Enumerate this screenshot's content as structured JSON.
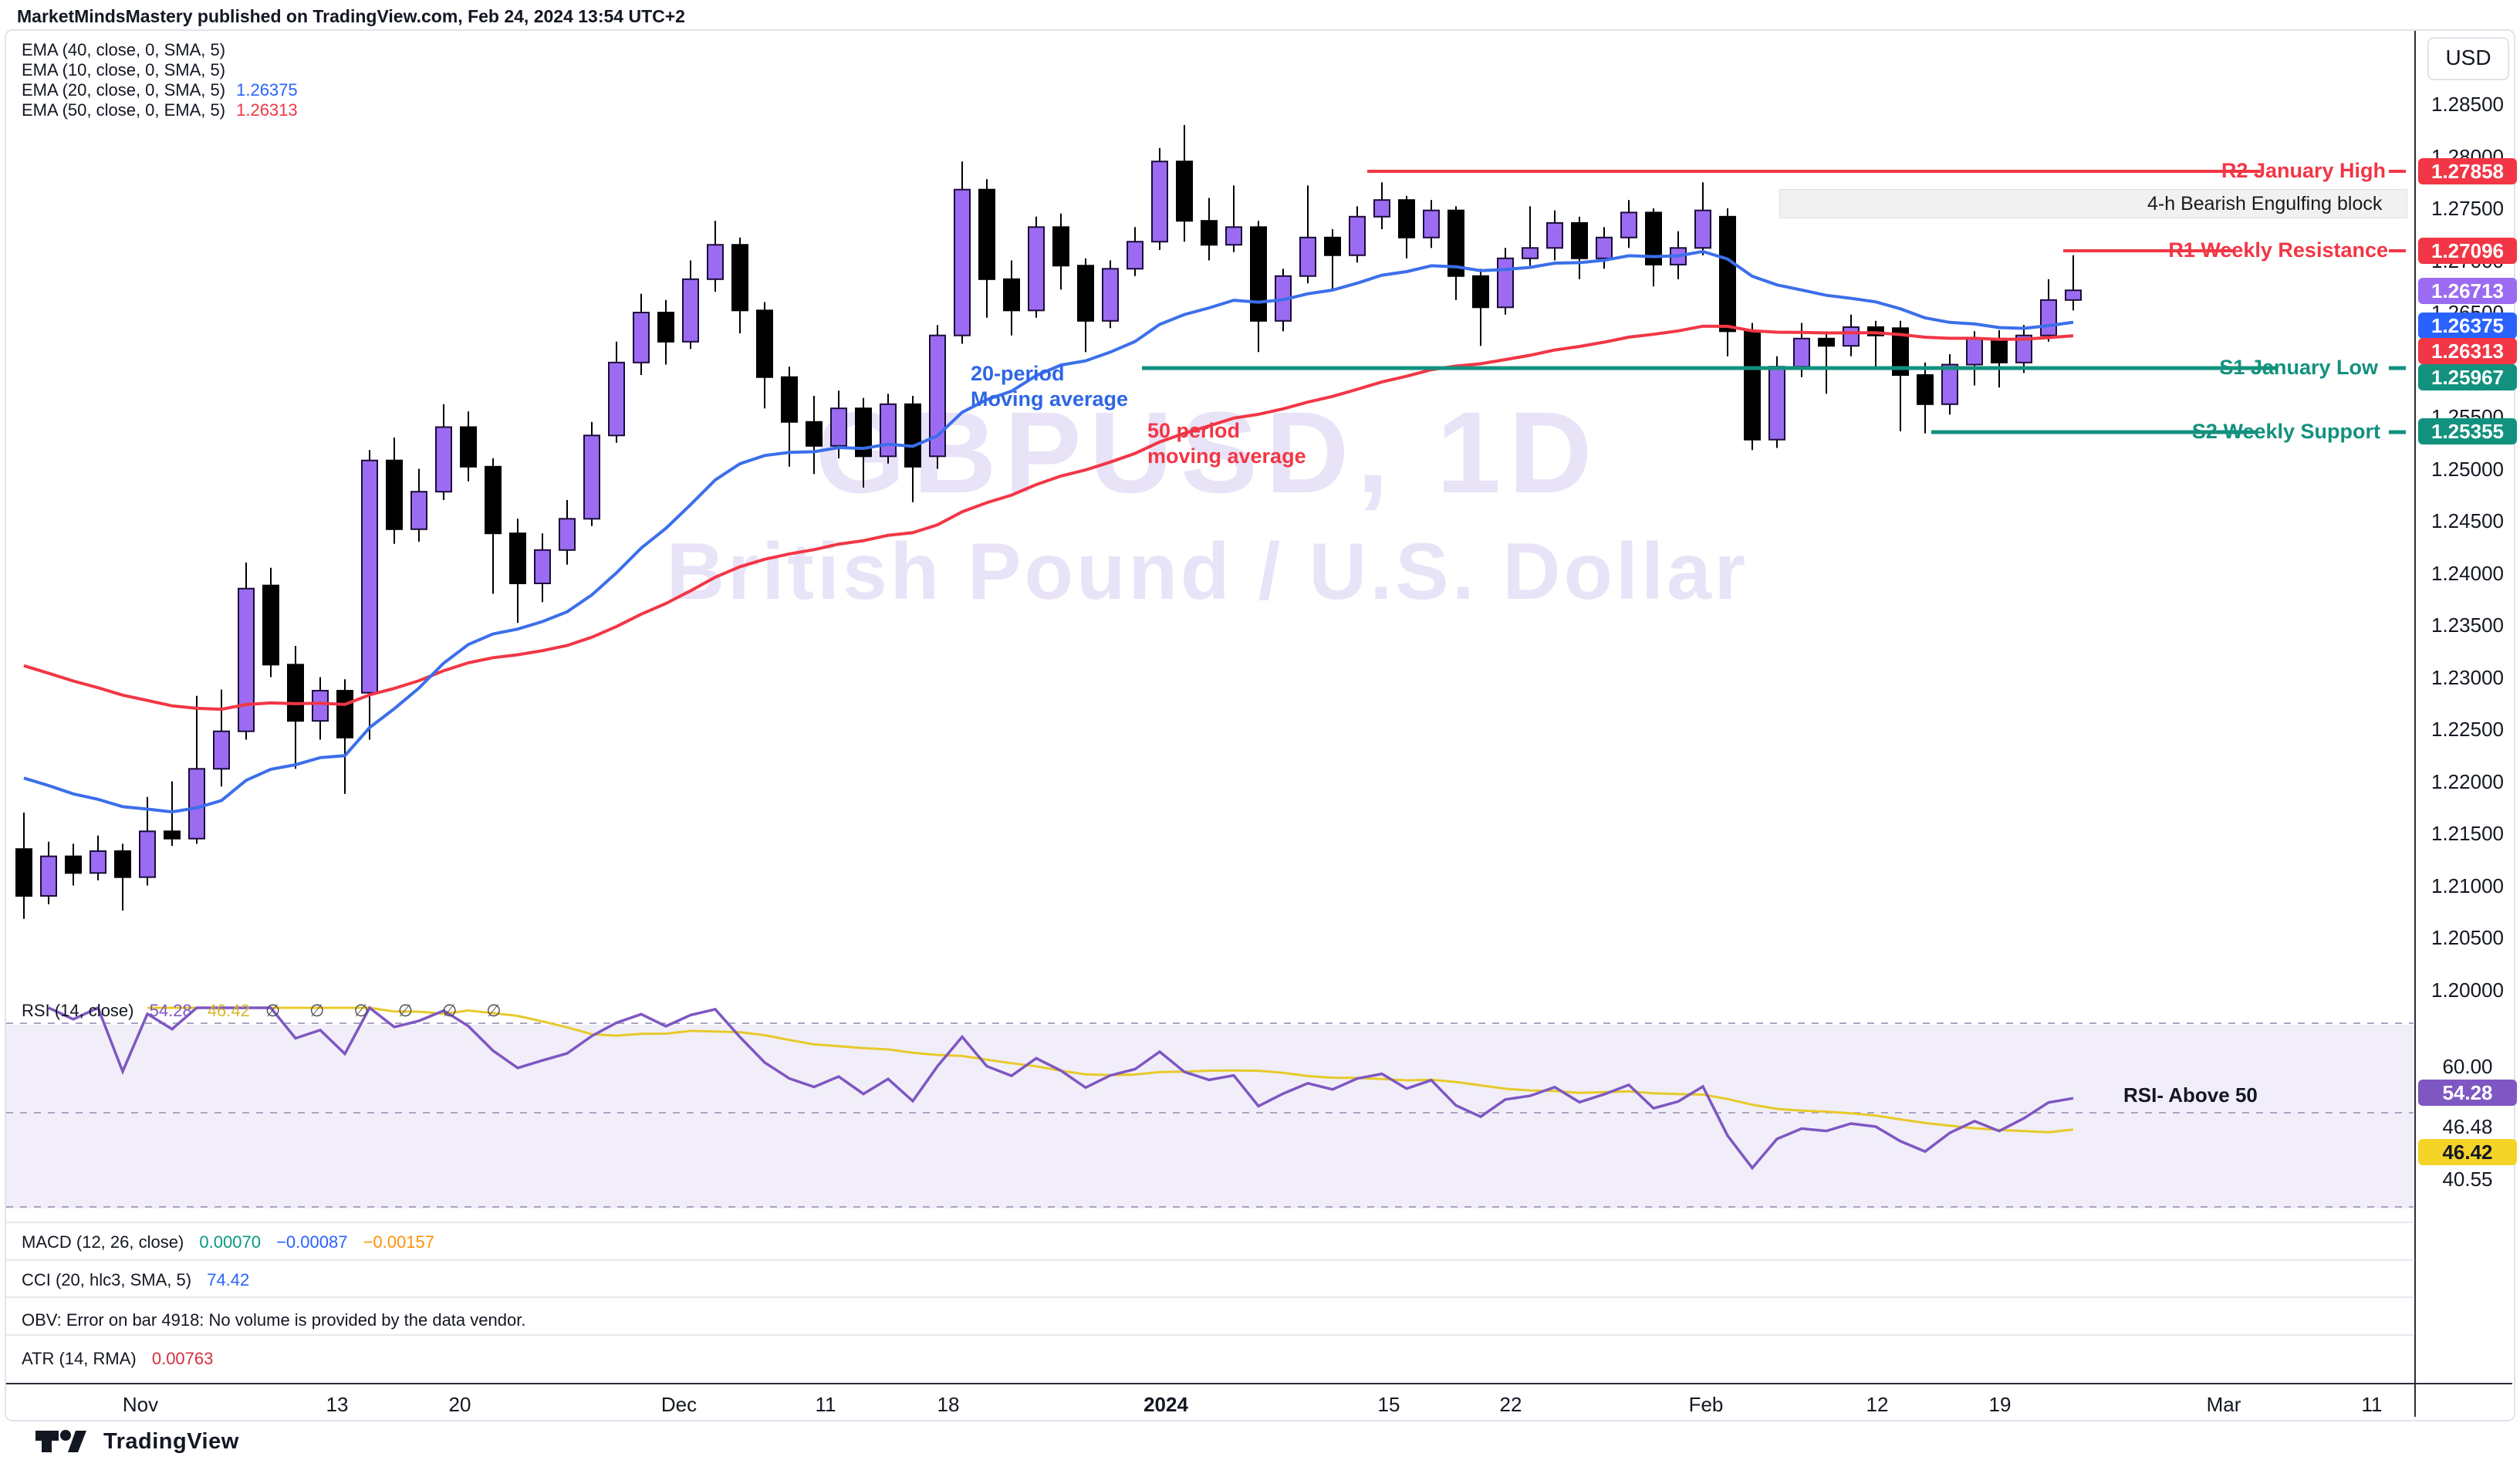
{
  "header": {
    "title": "MarketMindsMastery published on TradingView.com, Feb 24, 2024 13:54 UTC+2"
  },
  "watermark": {
    "line1": "GBPUSD, 1D",
    "line2": "British Pound / U.S. Dollar"
  },
  "legend": {
    "emas": [
      {
        "label": "EMA (40, close, 0, SMA, 5)",
        "value": "",
        "color": ""
      },
      {
        "label": "EMA (10, close, 0, SMA, 5)",
        "value": "",
        "color": ""
      },
      {
        "label": "EMA (20, close, 0, SMA, 5)",
        "value": "1.26375",
        "color": "#2962FF"
      },
      {
        "label": "EMA (50, close, 0, EMA, 5)",
        "value": "1.26313",
        "color": "#F23645"
      }
    ]
  },
  "annotations": {
    "ma20_line1": "20-period",
    "ma20_line2": "Moving average",
    "ma50_line1": "50 period",
    "ma50_line2": "moving average",
    "engulfing": "4-h Bearish Engulfing block",
    "rsi_note": "RSI- Above 50"
  },
  "levels": [
    {
      "id": "r2",
      "label": "R2 January High",
      "price": "1.27858",
      "color": "#F23645"
    },
    {
      "id": "r1",
      "label": "R1 Weekly Resistance",
      "price": "1.27096",
      "color": "#F23645"
    },
    {
      "id": "s1",
      "label": "S1 January Low",
      "price": "1.25967",
      "color": "#12917E"
    },
    {
      "id": "s2",
      "label": "S2 Weekly Support",
      "price": "1.25355",
      "color": "#12917E"
    }
  ],
  "price_scale": {
    "currency": "USD",
    "last_price": "1.26713",
    "last_price_color": "#9B6CF2",
    "ema20_box": "1.26375",
    "ema20_color": "#2962FF",
    "ema50_box": "1.26313",
    "ema50_color": "#F23645",
    "ticks": [
      "1.28500",
      "1.28000",
      "1.27500",
      "1.27000",
      "1.26500",
      "1.26000",
      "1.25500",
      "1.25000",
      "1.24500",
      "1.24000",
      "1.23500",
      "1.23000",
      "1.22500",
      "1.22000",
      "1.21500",
      "1.21000",
      "1.20500",
      "1.20000"
    ]
  },
  "rsi_pane": {
    "label": "RSI (14, close)",
    "value_main": "54.28",
    "value_main_color": "#7E57C2",
    "value_ma": "46.42",
    "value_ma_color": "#D9B92A",
    "nulls": "∅ ∅ ∅ ∅ ∅ ∅",
    "ticks": [
      "60.00",
      "46.48",
      "40.55"
    ],
    "box_main": "54.28",
    "box_main_color": "#7E57C2",
    "box_ma": "46.42",
    "box_ma_color": "#F5D428"
  },
  "macd_pane": {
    "label": "MACD (12, 26, close)",
    "v1": "0.00070",
    "v1_color": "#089981",
    "v2": "−0.00087",
    "v2_color": "#2962FF",
    "v3": "−0.00157",
    "v3_color": "#FF9100"
  },
  "cci_pane": {
    "label": "CCI (20, hlc3, SMA, 5)",
    "value": "74.42",
    "value_color": "#2962FF"
  },
  "obv_pane": {
    "text": "OBV: Error on bar 4918: No volume is provided by the data vendor."
  },
  "atr_pane": {
    "label": "ATR (14, RMA)",
    "value": "0.00763",
    "value_color": "#D32F3C"
  },
  "time_axis": {
    "ticks": [
      "Nov",
      "13",
      "20",
      "Dec",
      "11",
      "18",
      "2024",
      "15",
      "22",
      "Feb",
      "12",
      "19",
      "Mar",
      "11"
    ]
  },
  "footer": {
    "brand": "TradingView"
  },
  "chart_data": {
    "type": "candlestick",
    "symbol": "GBPUSD",
    "timeframe": "1D",
    "title": "GBPUSD, 1D",
    "subtitle": "British Pound / U.S. Dollar",
    "price_axis": {
      "min": 1.2,
      "max": 1.285,
      "tick_step": 0.005,
      "currency": "USD"
    },
    "time_ticks": [
      "Nov",
      "13",
      "20",
      "Dec",
      "11",
      "18",
      "2024",
      "15",
      "22",
      "Feb",
      "12",
      "19",
      "Mar",
      "11"
    ],
    "candle_colors": {
      "bull": "#9B6CF2",
      "bear": "#000000"
    },
    "ohlc": [
      [
        1.2135,
        1.217,
        1.2068,
        1.209
      ],
      [
        1.209,
        1.2142,
        1.2082,
        1.2128
      ],
      [
        1.2128,
        1.214,
        1.21,
        1.2112
      ],
      [
        1.2112,
        1.2148,
        1.2105,
        1.2133
      ],
      [
        1.2133,
        1.214,
        1.2076,
        1.2108
      ],
      [
        1.2108,
        1.2185,
        1.21,
        1.2152
      ],
      [
        1.2152,
        1.22,
        1.2138,
        1.2145
      ],
      [
        1.2145,
        1.2282,
        1.214,
        1.2212
      ],
      [
        1.2212,
        1.2288,
        1.2195,
        1.2248
      ],
      [
        1.2248,
        1.241,
        1.224,
        1.2385
      ],
      [
        1.2388,
        1.2405,
        1.23,
        1.2312
      ],
      [
        1.2312,
        1.233,
        1.2212,
        1.2258
      ],
      [
        1.2258,
        1.23,
        1.224,
        1.2287
      ],
      [
        1.2287,
        1.2298,
        1.2188,
        1.2242
      ],
      [
        1.2285,
        1.2518,
        1.224,
        1.2508
      ],
      [
        1.2508,
        1.253,
        1.2428,
        1.2442
      ],
      [
        1.2442,
        1.25,
        1.243,
        1.2478
      ],
      [
        1.2478,
        1.2562,
        1.247,
        1.254
      ],
      [
        1.254,
        1.2555,
        1.2488,
        1.2502
      ],
      [
        1.2502,
        1.251,
        1.238,
        1.2438
      ],
      [
        1.2438,
        1.2452,
        1.2352,
        1.239
      ],
      [
        1.239,
        1.2438,
        1.2372,
        1.2422
      ],
      [
        1.2422,
        1.247,
        1.2408,
        1.2452
      ],
      [
        1.2452,
        1.2545,
        1.2445,
        1.2532
      ],
      [
        1.2532,
        1.2622,
        1.2525,
        1.2602
      ],
      [
        1.2602,
        1.2668,
        1.259,
        1.265
      ],
      [
        1.265,
        1.2662,
        1.26,
        1.2622
      ],
      [
        1.2622,
        1.27,
        1.2615,
        1.2682
      ],
      [
        1.2682,
        1.2738,
        1.267,
        1.2715
      ],
      [
        1.2715,
        1.2722,
        1.263,
        1.2652
      ],
      [
        1.2652,
        1.266,
        1.2558,
        1.2588
      ],
      [
        1.2588,
        1.2598,
        1.2502,
        1.2545
      ],
      [
        1.2545,
        1.257,
        1.2495,
        1.2522
      ],
      [
        1.2522,
        1.2575,
        1.251,
        1.2558
      ],
      [
        1.2558,
        1.2568,
        1.2482,
        1.2512
      ],
      [
        1.2512,
        1.2572,
        1.2505,
        1.2562
      ],
      [
        1.2562,
        1.257,
        1.2468,
        1.2502
      ],
      [
        1.2512,
        1.2638,
        1.25,
        1.2628
      ],
      [
        1.2628,
        1.2795,
        1.262,
        1.2768
      ],
      [
        1.2768,
        1.2778,
        1.2645,
        1.2682
      ],
      [
        1.2682,
        1.27,
        1.2628,
        1.2652
      ],
      [
        1.2652,
        1.2742,
        1.2645,
        1.2732
      ],
      [
        1.2732,
        1.2745,
        1.2672,
        1.2695
      ],
      [
        1.2695,
        1.2702,
        1.2612,
        1.2642
      ],
      [
        1.2642,
        1.27,
        1.2635,
        1.2692
      ],
      [
        1.2692,
        1.2732,
        1.2685,
        1.2718
      ],
      [
        1.2718,
        1.2808,
        1.271,
        1.2795
      ],
      [
        1.2795,
        1.283,
        1.2718,
        1.2738
      ],
      [
        1.2738,
        1.276,
        1.27,
        1.2715
      ],
      [
        1.2715,
        1.2772,
        1.2708,
        1.2732
      ],
      [
        1.2732,
        1.2738,
        1.2612,
        1.2642
      ],
      [
        1.2642,
        1.2692,
        1.2632,
        1.2685
      ],
      [
        1.2685,
        1.2772,
        1.2678,
        1.2722
      ],
      [
        1.2722,
        1.273,
        1.2672,
        1.2705
      ],
      [
        1.2705,
        1.2752,
        1.2698,
        1.2742
      ],
      [
        1.2742,
        1.2775,
        1.273,
        1.2758
      ],
      [
        1.2758,
        1.2762,
        1.2702,
        1.2722
      ],
      [
        1.2722,
        1.2758,
        1.2712,
        1.2748
      ],
      [
        1.2748,
        1.2752,
        1.2662,
        1.2685
      ],
      [
        1.2685,
        1.2692,
        1.2618,
        1.2655
      ],
      [
        1.2655,
        1.2712,
        1.2648,
        1.2702
      ],
      [
        1.2702,
        1.2752,
        1.2695,
        1.2712
      ],
      [
        1.2712,
        1.2748,
        1.27,
        1.2736
      ],
      [
        1.2736,
        1.2742,
        1.2682,
        1.2702
      ],
      [
        1.2702,
        1.2732,
        1.2692,
        1.2722
      ],
      [
        1.2722,
        1.2758,
        1.2712,
        1.2746
      ],
      [
        1.2746,
        1.275,
        1.2675,
        1.2696
      ],
      [
        1.2696,
        1.2728,
        1.2682,
        1.2712
      ],
      [
        1.2712,
        1.2775,
        1.2705,
        1.2748
      ],
      [
        1.2742,
        1.275,
        1.2608,
        1.2632
      ],
      [
        1.2632,
        1.264,
        1.2518,
        1.2528
      ],
      [
        1.2528,
        1.2608,
        1.252,
        1.2598
      ],
      [
        1.2598,
        1.264,
        1.2588,
        1.2625
      ],
      [
        1.2625,
        1.2632,
        1.2572,
        1.2618
      ],
      [
        1.2618,
        1.2648,
        1.2608,
        1.2636
      ],
      [
        1.2636,
        1.2642,
        1.2598,
        1.2628
      ],
      [
        1.2635,
        1.2642,
        1.2536,
        1.259
      ],
      [
        1.259,
        1.2602,
        1.2534,
        1.2562
      ],
      [
        1.2562,
        1.261,
        1.2552,
        1.26
      ],
      [
        1.26,
        1.2632,
        1.258,
        1.2625
      ],
      [
        1.2625,
        1.2633,
        1.2578,
        1.2602
      ],
      [
        1.2602,
        1.2638,
        1.2592,
        1.2628
      ],
      [
        1.2628,
        1.2682,
        1.2622,
        1.2662
      ],
      [
        1.2662,
        1.2705,
        1.2652,
        1.26713
      ]
    ],
    "overlays": [
      {
        "name": "EMA 20",
        "color": "#3B6FEA",
        "last_value": 1.26375
      },
      {
        "name": "EMA 50",
        "color": "#F23645",
        "last_value": 1.26313
      }
    ],
    "levels": [
      {
        "label": "R2 January High",
        "value": 1.27858
      },
      {
        "label": "R1 Weekly Resistance",
        "value": 1.27096
      },
      {
        "label": "S1 January Low",
        "value": 1.25967
      },
      {
        "label": "S2 Weekly Support",
        "value": 1.25355
      }
    ],
    "rsi": {
      "period": 14,
      "last": 54.28,
      "ma_last": 46.42,
      "line_color": "#7E57C2",
      "ma_color": "#E8C92A",
      "guides": [
        70,
        50,
        30
      ]
    }
  }
}
